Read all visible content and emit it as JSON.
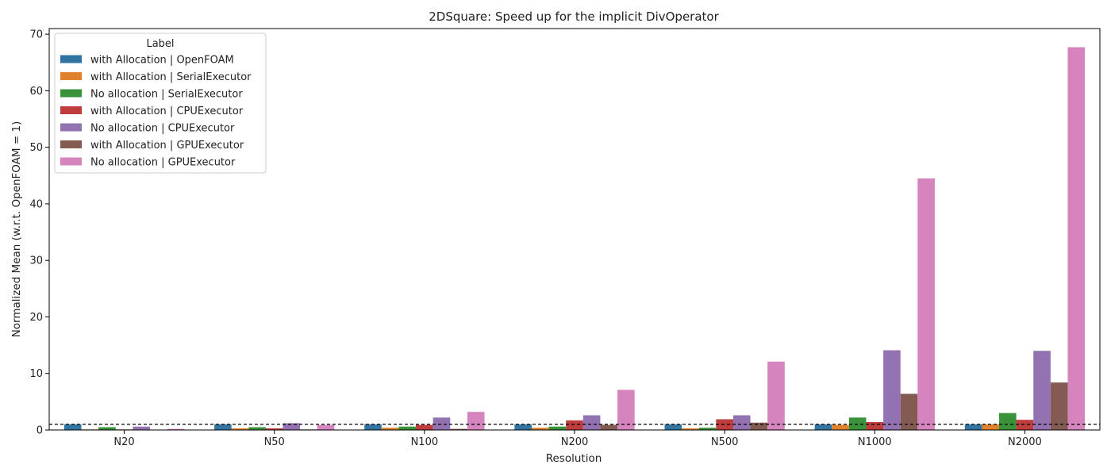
{
  "chart_data": {
    "type": "bar",
    "title": "2DSquare: Speed up for the implicit DivOperator",
    "xlabel": "Resolution",
    "ylabel": "Normalized Mean (w.r.t. OpenFOAM = 1)",
    "ylim": [
      0,
      71
    ],
    "yticks": [
      0,
      10,
      20,
      30,
      40,
      50,
      60,
      70
    ],
    "categories": [
      "N20",
      "N50",
      "N100",
      "N200",
      "N500",
      "N1000",
      "N2000"
    ],
    "reference_line": 1,
    "legend_title": "Label",
    "legend_position": "top-left",
    "series": [
      {
        "name": "with Allocation | OpenFOAM",
        "color": "#3274a1",
        "values": [
          1,
          1,
          1,
          1,
          1,
          1,
          1
        ]
      },
      {
        "name": "with Allocation | SerialExecutor",
        "color": "#e1812c",
        "values": [
          0.1,
          0.3,
          0.4,
          0.4,
          0.3,
          0.9,
          1.0
        ]
      },
      {
        "name": "No allocation | SerialExecutor",
        "color": "#3a923a",
        "values": [
          0.5,
          0.5,
          0.6,
          0.6,
          0.4,
          2.2,
          3.0
        ]
      },
      {
        "name": "with Allocation | CPUExecutor",
        "color": "#c03d3e",
        "values": [
          0.1,
          0.3,
          0.9,
          1.7,
          1.9,
          1.4,
          1.8
        ]
      },
      {
        "name": "No allocation | CPUExecutor",
        "color": "#9372b2",
        "values": [
          0.6,
          1.2,
          2.2,
          2.6,
          2.6,
          14.1,
          14.0
        ]
      },
      {
        "name": "with Allocation | GPUExecutor",
        "color": "#845b53",
        "values": [
          0.05,
          0.1,
          0.2,
          0.9,
          1.3,
          6.4,
          8.4
        ]
      },
      {
        "name": "No allocation | GPUExecutor",
        "color": "#d684bd",
        "values": [
          0.2,
          0.9,
          3.2,
          7.1,
          12.1,
          44.5,
          67.7
        ]
      }
    ]
  }
}
